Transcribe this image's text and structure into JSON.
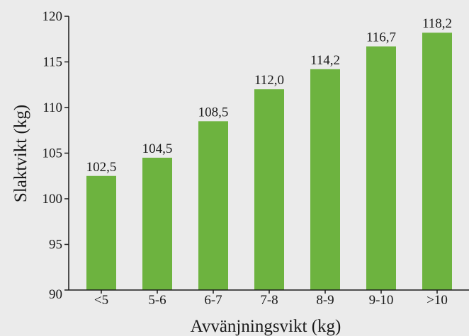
{
  "chart_data": {
    "type": "bar",
    "categories": [
      "<5",
      "5-6",
      "6-7",
      "7-8",
      "8-9",
      "9-10",
      ">10"
    ],
    "values": [
      102.5,
      104.5,
      108.5,
      112.0,
      114.2,
      116.7,
      118.2
    ],
    "value_labels": [
      "102,5",
      "104,5",
      "108,5",
      "112,0",
      "114,2",
      "116,7",
      "118,2"
    ],
    "title": "",
    "xlabel": "Avvänjningsvikt (kg)",
    "ylabel": "Slaktvikt (kg)",
    "ylim": [
      90,
      120
    ],
    "yticks": [
      90,
      95,
      100,
      105,
      110,
      115,
      120
    ],
    "ytick_labels": [
      "90",
      "95",
      "100",
      "105",
      "110",
      "115",
      "120"
    ],
    "grid": false,
    "legend": "none",
    "colors": {
      "bar": "#6db33f",
      "background": "#ebebeb",
      "axis": "#1a1a1a"
    }
  }
}
